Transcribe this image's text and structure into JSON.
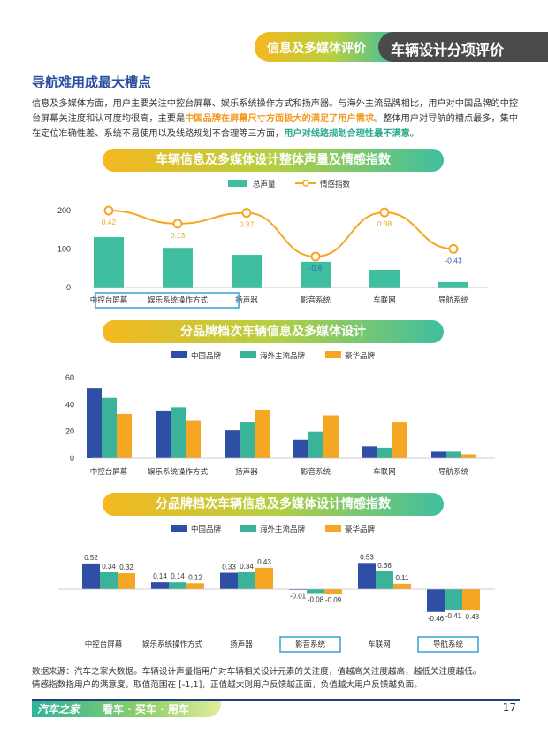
{
  "header": {
    "tab_left": "信息及多媒体评价",
    "tab_right": "车辆设计分项评价"
  },
  "section_title": "导航难用成最大槽点",
  "intro": {
    "p1": "信息及多媒体方面，用户主要关注中控台屏幕、娱乐系统操作方式和扬声器。与海外主流品牌相比，用户对中国品牌的中控台屏幕关注度和认可度均很高，主要是",
    "p1_highlight": "中国品牌在屏幕尺寸方面极大的满足了用户需求",
    "p2": "。整体用户对导航的槽点最多，集中在定位准确性差、系统不易使用以及线路规划不合理等三方面，",
    "p2_highlight": "用户对线路规划合理性最不满意",
    "p3": "。"
  },
  "colors": {
    "green": "#3fbfa0",
    "orange": "#f5a623",
    "blue": "#2f4fa7",
    "teal": "#3bb39a",
    "gold": "#f5a623",
    "highlight_box": "#3a9fd6"
  },
  "chart_data": [
    {
      "type": "bar",
      "title": "车辆信息及多媒体设计整体声量及情感指数",
      "categories": [
        "中控台屏幕",
        "娱乐系统操作方式",
        "扬声器",
        "影音系统",
        "车联网",
        "导航系统"
      ],
      "series": [
        {
          "name": "总声量",
          "values": [
            131,
            103,
            85,
            67,
            46,
            14
          ]
        },
        {
          "name": "情感指数",
          "type": "line",
          "values": [
            0.42,
            0.13,
            0.37,
            -0.6,
            0.38,
            -0.43
          ],
          "labels": [
            "0.42",
            "0.13",
            "0.37",
            "-0.6",
            "0.38",
            "-0.43"
          ]
        }
      ],
      "yticks": [
        0,
        100,
        200
      ],
      "ylim": [
        0,
        200
      ],
      "legend": "top-center",
      "highlighted_categories": [
        0,
        1,
        2
      ]
    },
    {
      "type": "bar",
      "title": "分品牌档次车辆信息及多媒体设计",
      "categories": [
        "中控台屏幕",
        "娱乐系统操作方式",
        "扬声器",
        "影音系统",
        "车联网",
        "导航系统"
      ],
      "series": [
        {
          "name": "中国品牌",
          "values": [
            52,
            35,
            21,
            14,
            9,
            5
          ]
        },
        {
          "name": "海外主流品牌",
          "values": [
            45,
            38,
            27,
            20,
            8,
            5
          ]
        },
        {
          "name": "豪华品牌",
          "values": [
            33,
            28,
            36,
            32,
            27,
            3
          ]
        }
      ],
      "yticks": [
        0,
        20,
        40,
        60
      ],
      "ylim": [
        0,
        60
      ],
      "legend": "top-center"
    },
    {
      "type": "bar",
      "title": "分品牌档次车辆信息及多媒体设计情感指数",
      "categories": [
        "中控台屏幕",
        "娱乐系统操作方式",
        "扬声器",
        "影音系统",
        "车联网",
        "导航系统"
      ],
      "series": [
        {
          "name": "中国品牌",
          "values": [
            0.52,
            0.14,
            0.33,
            -0.01,
            0.53,
            -0.46
          ]
        },
        {
          "name": "海外主流品牌",
          "values": [
            0.34,
            0.14,
            0.34,
            -0.08,
            0.36,
            -0.41
          ]
        },
        {
          "name": "豪华品牌",
          "values": [
            0.32,
            0.12,
            0.43,
            -0.09,
            0.11,
            -0.43
          ]
        }
      ],
      "ylim": [
        -0.5,
        0.6
      ],
      "legend": "top-center",
      "highlighted_categories": [
        3,
        5
      ]
    }
  ],
  "note": {
    "line1": "数据来源：汽车之家大数据。车辆设计声量指用户对车辆相关设计元素的关注度，值越高关注度越高，越低关注度越低。",
    "line2": "情感指数指用户的满意度，取值范围在 [-1,1]，正值越大则用户反馈越正面，负值越大用户反馈越负面。"
  },
  "footer": {
    "logo": "汽车之家",
    "slogan": "看车 · 买车 · 用车",
    "page": "17"
  }
}
